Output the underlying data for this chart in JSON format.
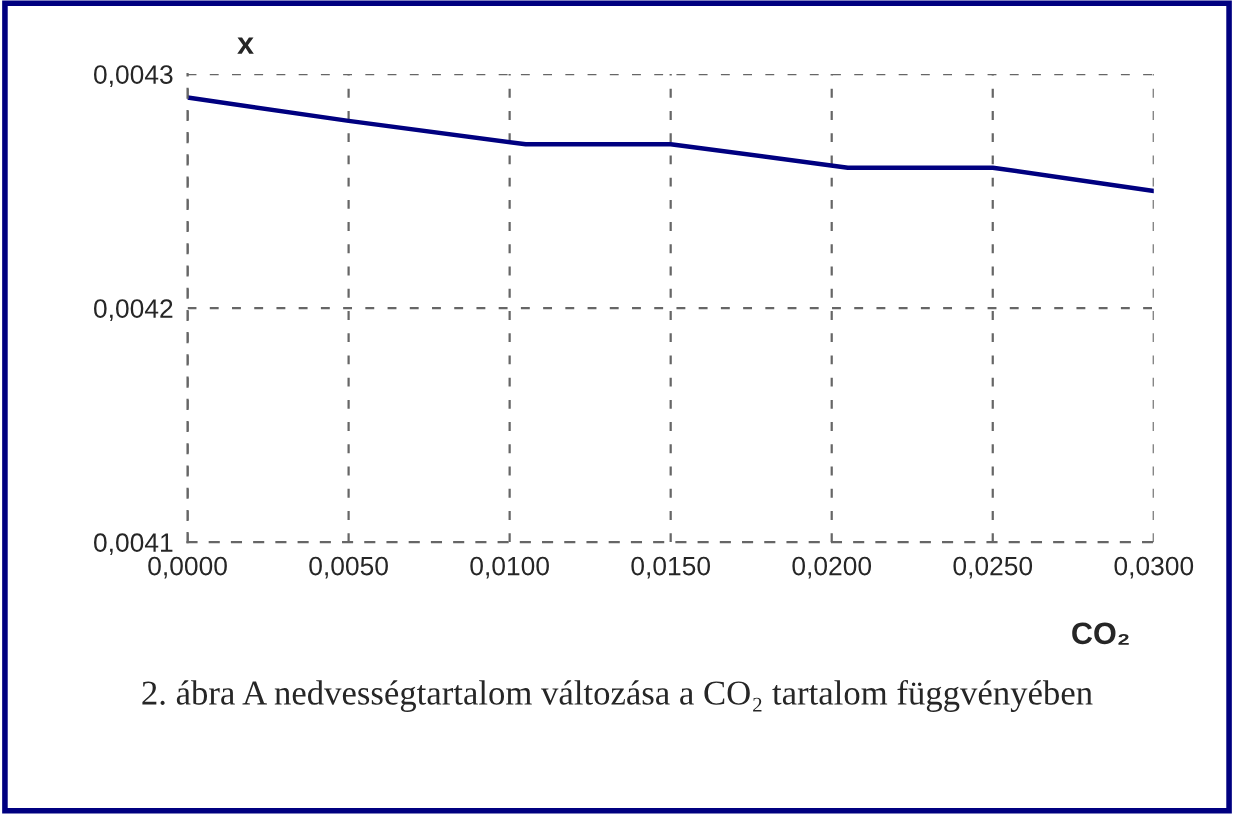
{
  "chart_data": {
    "type": "line",
    "xlabel": "CO₂",
    "ylabel": "x",
    "annotations": [
      "2. ábra A nedvességtartalom változása a CO₂ tartalom függvényében"
    ],
    "x": [
      0,
      0.005,
      0.0105,
      0.015,
      0.0205,
      0.025,
      0.03
    ],
    "series": [
      {
        "color": "#000080",
        "values": [
          0.00429,
          0.00428,
          0.00427,
          0.00427,
          0.00426,
          0.00426,
          0.00425
        ]
      }
    ],
    "xlim": [
      0,
      0.03
    ],
    "ylim": [
      0.0041,
      0.0043
    ],
    "xticks": [
      {
        "value": 0,
        "label": "0,0000"
      },
      {
        "value": 0.005,
        "label": "0,0050"
      },
      {
        "value": 0.01,
        "label": "0,0100"
      },
      {
        "value": 0.015,
        "label": "0,0150"
      },
      {
        "value": 0.02,
        "label": "0,0200"
      },
      {
        "value": 0.025,
        "label": "0,0250"
      },
      {
        "value": 0.03,
        "label": "0,0300"
      }
    ],
    "yticks": [
      {
        "value": 0.0041,
        "label": "0,0041"
      },
      {
        "value": 0.0042,
        "label": "0,0042"
      },
      {
        "value": 0.0043,
        "label": "0,0043"
      }
    ],
    "grid": true,
    "marker": "none",
    "line_style": "solid"
  }
}
